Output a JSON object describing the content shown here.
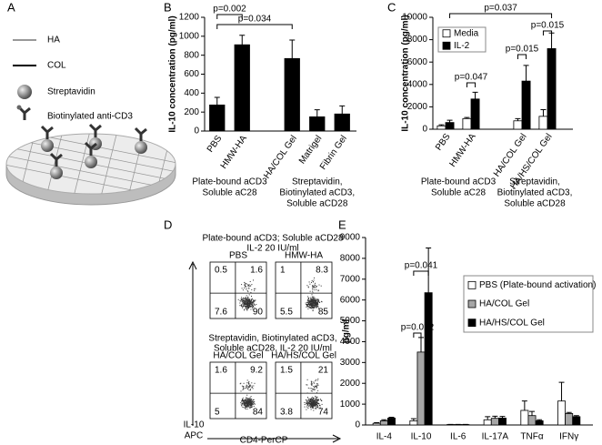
{
  "panel_labels": [
    "A",
    "B",
    "C",
    "D",
    "E"
  ],
  "diagram": {
    "legend": [
      "HA",
      "COL",
      "Streptavidin",
      "Biotinylated anti-CD3"
    ]
  },
  "chart_data": [
    {
      "type": "bar",
      "y_label": "IL-10 concentration (pg/ml)",
      "categories": [
        "PBS",
        "HMW-HA",
        null,
        "HA/COL Gel",
        "Matrigel",
        "Fibrin Gel"
      ],
      "values": [
        275,
        910,
        null,
        765,
        150,
        180
      ],
      "errors": [
        80,
        100,
        null,
        195,
        75,
        85
      ],
      "color": "#000000",
      "ylim": [
        0,
        1200
      ],
      "yticks": [
        0,
        200,
        400,
        600,
        800,
        1000,
        1200
      ],
      "annotations": [
        "p=0.002",
        "p=0.034"
      ],
      "group_labels": [
        [
          "Plate-bound aCD3",
          "Soluble aC28"
        ],
        [
          "Streptavidin,",
          "Biotinylated aCD3,",
          "Soluble aCD28"
        ]
      ]
    },
    {
      "type": "bar",
      "y_label": "IL-10 concentration (pg/ml)",
      "categories": [
        "PBS",
        "HMW-HA",
        null,
        "HA/COL Gel",
        "HA/HS/COL Gel"
      ],
      "series": [
        {
          "name": "Media",
          "color": "#ffffff",
          "values": [
            300,
            950,
            null,
            750,
            1150
          ],
          "errors": [
            100,
            100,
            null,
            200,
            600
          ]
        },
        {
          "name": "IL-2",
          "color": "#000000",
          "values": [
            600,
            2700,
            null,
            4300,
            7200
          ],
          "errors": [
            200,
            600,
            null,
            1400,
            1400
          ]
        }
      ],
      "ylim": [
        0,
        10000
      ],
      "yticks": [
        0,
        2000,
        4000,
        6000,
        8000,
        10000
      ],
      "annotations": [
        "p=0.037",
        "p=0.047",
        "p=0.015",
        "p=0.015"
      ],
      "group_labels": [
        [
          "Plate-bound aCD3",
          "Soluble aC28"
        ],
        [
          "Streptavidin,",
          "Biotinylated aCD3,",
          "Soluble aCD28"
        ]
      ]
    },
    {
      "type": "bar",
      "y_label": "pg/ml",
      "categories": [
        "IL-4",
        "IL-10",
        "IL-6",
        "IL-17A",
        "TNFα",
        "IFNγ"
      ],
      "series": [
        {
          "name": "PBS (Plate-bound activation)",
          "color": "#ffffff",
          "values": [
            80,
            200,
            20,
            250,
            700,
            1150
          ],
          "errors": [
            30,
            100,
            5,
            150,
            450,
            900
          ]
        },
        {
          "name": "HA/COL Gel",
          "color": "#a6a6a6",
          "values": [
            200,
            3500,
            20,
            320,
            450,
            550
          ],
          "errors": [
            50,
            700,
            5,
            100,
            200,
            50
          ]
        },
        {
          "name": "HA/HS/COL Gel",
          "color": "#000000",
          "values": [
            330,
            6350,
            20,
            330,
            200,
            400
          ],
          "errors": [
            40,
            2150,
            5,
            80,
            50,
            50
          ]
        }
      ],
      "ylim": [
        0,
        9000
      ],
      "yticks": [
        0,
        1000,
        2000,
        3000,
        4000,
        5000,
        6000,
        7000,
        8000,
        9000
      ],
      "annotations": [
        "p=0.012",
        "p=0.041"
      ]
    }
  ],
  "flow": {
    "top_title": [
      "Plate-bound aCD3; Soluble aCD28",
      "IL-2 20 IU/ml"
    ],
    "middle_title": [
      "Streptavidin, Biotinylated aCD3,",
      "Soluble aCD28, IL-2 20 IU/ml"
    ],
    "plots": [
      {
        "label": "PBS",
        "quadrants": [
          0.5,
          1.6,
          7.6,
          90
        ]
      },
      {
        "label": "HMW-HA",
        "quadrants": [
          1,
          8.3,
          5.5,
          85
        ]
      },
      {
        "label": "HA/COL Gel",
        "quadrants": [
          1.6,
          9.2,
          5,
          84
        ]
      },
      {
        "label": "HA/HS/COL Gel",
        "quadrants": [
          1.5,
          21,
          3.8,
          74
        ]
      }
    ],
    "y_label": [
      "IL-10",
      "APC"
    ],
    "x_label": "CD4-PerCP"
  }
}
